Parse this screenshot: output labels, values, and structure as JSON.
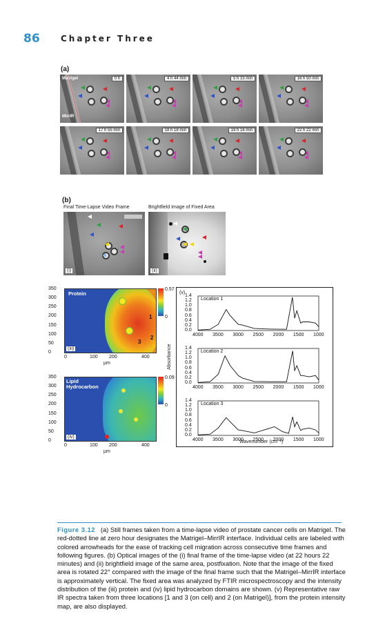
{
  "header": {
    "page_number": "86",
    "chapter_title": "Chapter Three"
  },
  "panel_a": {
    "label": "(a)",
    "frames": [
      "0 h",
      "4 h 44 min",
      "5 h 15 min",
      "16 h 50 min",
      "17 h 55 min",
      "18 h 18 min",
      "19 h 16 min",
      "22 h 22 min"
    ],
    "region_labels": {
      "matrigel": "Matrigel",
      "mirrir": "MirrIR"
    }
  },
  "panel_b": {
    "label": "(b)",
    "left_title": "Final Time-Lapse Video Frame",
    "right_title": "Brightfield Image of Fixed Area",
    "left_tag": "(i)",
    "right_tag": "(ii)"
  },
  "maps": {
    "protein": {
      "tag": "(iii)",
      "title": "Protein",
      "scale_max": "0.57",
      "scale_min": "0",
      "point_labels": [
        "1",
        "2",
        "3"
      ]
    },
    "lipid": {
      "tag": "(iv)",
      "title_line1": "Lipid",
      "title_line2": "Hydrocarbon",
      "scale_max": "0.09",
      "scale_min": "0"
    },
    "y_ticks": [
      "350",
      "300",
      "250",
      "200",
      "150",
      "100",
      "50",
      "0"
    ],
    "x_ticks": [
      "0",
      "100",
      "200",
      "400"
    ],
    "x_unit": "µm"
  },
  "spectra": {
    "tag": "(v)",
    "y_label": "Absorbance",
    "x_label": "Wavenumber (cm⁻¹)",
    "y_ticks": [
      "1.4",
      "1.2",
      "1.0",
      "0.8",
      "0.6",
      "0.4",
      "0.2",
      "0.0"
    ],
    "x_ticks": [
      "4000",
      "3500",
      "3000",
      "2500",
      "2000",
      "1500",
      "1000"
    ],
    "locations": [
      "Location 1",
      "Location 2",
      "Location 3"
    ]
  },
  "caption": {
    "fig_label": "Figure 3.12",
    "text_1": "(a) Still frames taken from a time-lapse video of prostate cancer cells on Matrigel. The red-dotted line at zero hour designates the Matrigel–MirrIR interface. Individual cells are labeled with colored arrowheads for the ease of tracking cell migration across consecutive time frames and following figures. ",
    "text_2": "(b) Optical images of the (i) final frame of the time-lapse video (at 22 hours 22 minutes) and (ii) brightfield image of the same area, postfixation. Note that the image of the fixed area is rotated 22° compared with the image of the final frame such that the Matrigel–MirrIR interface is approximately vertical. The fixed area was analyzed by FTIR microspectroscopy and the intensity distribution of the (iii) protein and (iv) lipid hydrocarbon domains are shown. (v) Representative raw IR spectra taken from three locations [1 and 3 (on cell) and 2 (on Matrigel)], from the protein intensity map, are also displayed."
  },
  "colors": {
    "accent": "#2f8fc8",
    "arrow_green": "#2fa043",
    "arrow_red": "#d9232a",
    "arrow_yellow": "#f5d60a",
    "arrow_blue": "#2d55c8",
    "arrow_magenta": "#cc3bb5"
  }
}
